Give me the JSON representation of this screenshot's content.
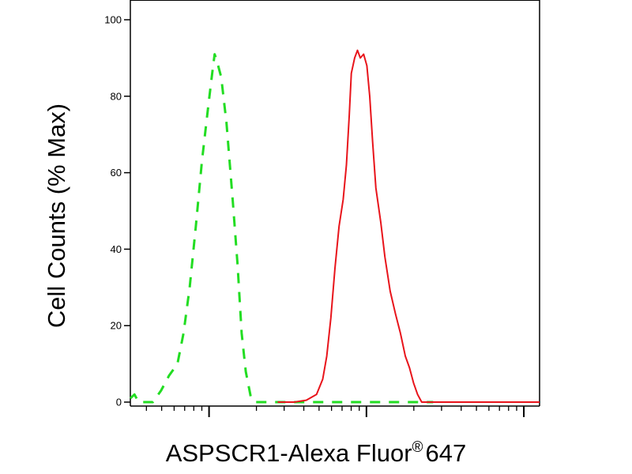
{
  "chart_data": {
    "type": "line",
    "title": "",
    "ylabel": "Cell Counts (% Max)",
    "xlabel": {
      "main": "ASPSCR1-Alexa Fluor",
      "mark": "®",
      "suffix": "647"
    },
    "x_scale": "log",
    "xlim": [
      0,
      1
    ],
    "ylim": [
      0,
      100
    ],
    "y_ticks": [
      0,
      20,
      40,
      60,
      80,
      100
    ],
    "y_tick_labels": [
      "0",
      "20",
      "40",
      "60",
      "80",
      "100"
    ],
    "x_tick_labels": [],
    "grid": false,
    "legend": "none",
    "series": [
      {
        "style": "dashed",
        "color": "#22dd22",
        "points": [
          [
            0.0,
            1
          ],
          [
            0.01,
            2
          ],
          [
            0.02,
            0
          ],
          [
            0.055,
            0
          ],
          [
            0.075,
            3
          ],
          [
            0.095,
            7
          ],
          [
            0.115,
            10
          ],
          [
            0.13,
            18
          ],
          [
            0.145,
            30
          ],
          [
            0.16,
            46
          ],
          [
            0.175,
            63
          ],
          [
            0.19,
            77
          ],
          [
            0.2,
            86
          ],
          [
            0.206,
            91
          ],
          [
            0.212,
            89
          ],
          [
            0.222,
            85
          ],
          [
            0.235,
            73
          ],
          [
            0.25,
            53
          ],
          [
            0.262,
            36
          ],
          [
            0.272,
            18
          ],
          [
            0.282,
            8
          ],
          [
            0.295,
            1
          ],
          [
            0.305,
            0
          ],
          [
            0.5,
            0
          ],
          [
            0.56,
            0
          ],
          [
            0.7,
            0
          ],
          [
            0.74,
            0
          ]
        ]
      },
      {
        "style": "solid",
        "color": "#e8141b",
        "points": [
          [
            0.36,
            0
          ],
          [
            0.4,
            0
          ],
          [
            0.43,
            0.5
          ],
          [
            0.455,
            2
          ],
          [
            0.47,
            6
          ],
          [
            0.48,
            12
          ],
          [
            0.49,
            22
          ],
          [
            0.5,
            35
          ],
          [
            0.51,
            46
          ],
          [
            0.52,
            53
          ],
          [
            0.528,
            62
          ],
          [
            0.535,
            75
          ],
          [
            0.54,
            86
          ],
          [
            0.548,
            90
          ],
          [
            0.555,
            92
          ],
          [
            0.562,
            90
          ],
          [
            0.57,
            91
          ],
          [
            0.578,
            88
          ],
          [
            0.585,
            80
          ],
          [
            0.592,
            68
          ],
          [
            0.6,
            56
          ],
          [
            0.612,
            47
          ],
          [
            0.622,
            38
          ],
          [
            0.635,
            29
          ],
          [
            0.648,
            23
          ],
          [
            0.66,
            18
          ],
          [
            0.672,
            12
          ],
          [
            0.682,
            9
          ],
          [
            0.692,
            5
          ],
          [
            0.702,
            2
          ],
          [
            0.712,
            0
          ],
          [
            0.8,
            0
          ],
          [
            0.93,
            0
          ],
          [
            1.0,
            0
          ]
        ]
      }
    ]
  }
}
